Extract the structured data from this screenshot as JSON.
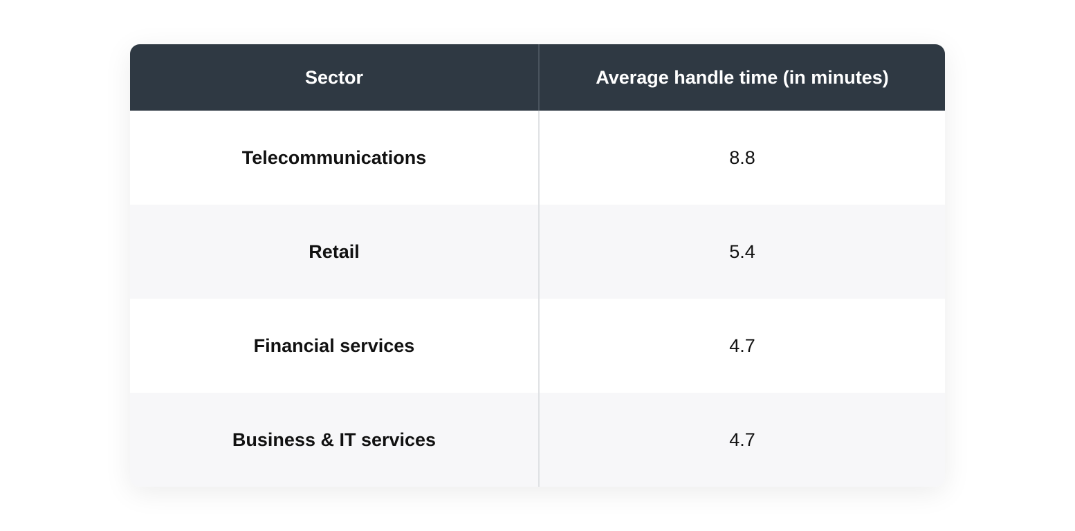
{
  "table": {
    "header": [
      "Sector",
      "Average handle time (in minutes)"
    ],
    "rows": [
      [
        "Telecommunications",
        "8.8"
      ],
      [
        "Retail",
        "5.4"
      ],
      [
        "Financial services",
        "4.7"
      ],
      [
        "Business & IT services",
        "4.7"
      ]
    ]
  }
}
